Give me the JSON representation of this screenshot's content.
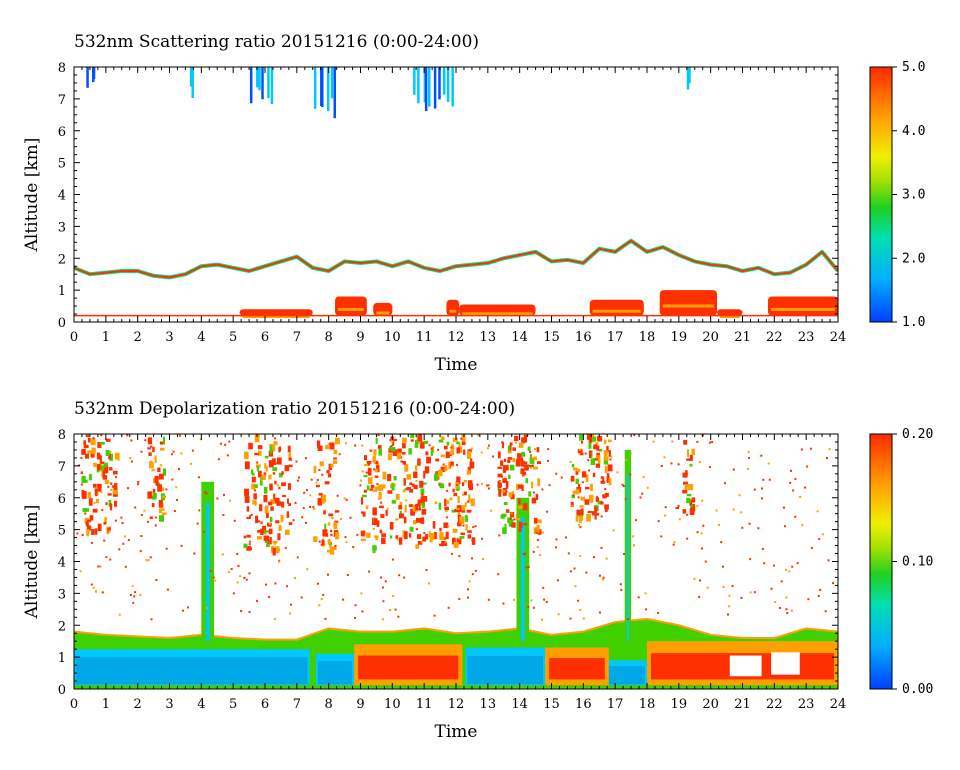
{
  "chart_data": [
    {
      "type": "heatmap",
      "title": "532nm Scattering ratio  20151216 (0:00-24:00)",
      "xlabel": "Time",
      "ylabel": "Altitude [km]",
      "xlim": [
        0,
        24
      ],
      "ylim": [
        0,
        8
      ],
      "x_ticks": [
        "0",
        "1",
        "2",
        "3",
        "4",
        "5",
        "6",
        "7",
        "8",
        "9",
        "10",
        "11",
        "12",
        "13",
        "14",
        "15",
        "16",
        "17",
        "18",
        "19",
        "20",
        "21",
        "22",
        "23",
        "24"
      ],
      "y_ticks": [
        "0",
        "1",
        "2",
        "3",
        "4",
        "5",
        "6",
        "7",
        "8"
      ],
      "colorbar": {
        "min": 1.0,
        "max": 5.0,
        "ticks": [
          "1.0",
          "2.0",
          "3.0",
          "4.0",
          "5.0"
        ]
      },
      "colorscale": [
        "#0050ff",
        "#00c8ff",
        "#00e080",
        "#40d000",
        "#f0f000",
        "#ffa000",
        "#ff3000"
      ],
      "cloud_top_layer_km": [
        [
          0,
          1.7
        ],
        [
          0.5,
          1.5
        ],
        [
          1,
          1.55
        ],
        [
          1.5,
          1.6
        ],
        [
          2,
          1.6
        ],
        [
          2.5,
          1.45
        ],
        [
          3,
          1.4
        ],
        [
          3.5,
          1.5
        ],
        [
          4,
          1.75
        ],
        [
          4.5,
          1.8
        ],
        [
          5,
          1.7
        ],
        [
          5.5,
          1.6
        ],
        [
          6,
          1.75
        ],
        [
          6.5,
          1.9
        ],
        [
          7,
          2.05
        ],
        [
          7.5,
          1.7
        ],
        [
          8,
          1.6
        ],
        [
          8.5,
          1.9
        ],
        [
          9,
          1.85
        ],
        [
          9.5,
          1.9
        ],
        [
          10,
          1.75
        ],
        [
          10.5,
          1.9
        ],
        [
          11,
          1.7
        ],
        [
          11.5,
          1.6
        ],
        [
          12,
          1.75
        ],
        [
          12.5,
          1.8
        ],
        [
          13,
          1.85
        ],
        [
          13.5,
          2.0
        ],
        [
          14,
          2.1
        ],
        [
          14.5,
          2.2
        ],
        [
          15,
          1.9
        ],
        [
          15.5,
          1.95
        ],
        [
          16,
          1.85
        ],
        [
          16.5,
          2.3
        ],
        [
          17,
          2.2
        ],
        [
          17.5,
          2.55
        ],
        [
          18,
          2.2
        ],
        [
          18.5,
          2.35
        ],
        [
          19,
          2.1
        ],
        [
          19.5,
          1.9
        ],
        [
          20,
          1.8
        ],
        [
          20.5,
          1.75
        ],
        [
          21,
          1.6
        ],
        [
          21.5,
          1.7
        ],
        [
          22,
          1.5
        ],
        [
          22.5,
          1.55
        ],
        [
          23,
          1.8
        ],
        [
          23.5,
          2.2
        ],
        [
          24,
          1.6
        ]
      ],
      "high_cloud_km": [
        {
          "start": 0.3,
          "end": 0.7,
          "bottom": 7.2
        },
        {
          "start": 3.6,
          "end": 3.7,
          "bottom": 6.9
        },
        {
          "start": 5.5,
          "end": 6.2,
          "bottom": 6.7
        },
        {
          "start": 7.5,
          "end": 8.2,
          "bottom": 6.3
        },
        {
          "start": 10.6,
          "end": 11.9,
          "bottom": 6.5
        },
        {
          "start": 19.2,
          "end": 19.3,
          "bottom": 7.2
        }
      ],
      "boundary_layer_km": [
        {
          "start": 5.2,
          "end": 7.5,
          "top": 0.4
        },
        {
          "start": 8.2,
          "end": 9.2,
          "top": 0.8
        },
        {
          "start": 9.4,
          "end": 10.0,
          "top": 0.6
        },
        {
          "start": 11.7,
          "end": 12.1,
          "top": 0.7
        },
        {
          "start": 12.1,
          "end": 14.5,
          "top": 0.55
        },
        {
          "start": 16.2,
          "end": 17.9,
          "top": 0.7
        },
        {
          "start": 18.4,
          "end": 20.2,
          "top": 1.0
        },
        {
          "start": 20.2,
          "end": 21.0,
          "top": 0.4
        },
        {
          "start": 21.8,
          "end": 24.0,
          "top": 0.8
        }
      ]
    },
    {
      "type": "heatmap",
      "title": "532nm Depolarization ratio  20151216 (0:00-24:00)",
      "xlabel": "Time",
      "ylabel": "Altitude [km]",
      "xlim": [
        0,
        24
      ],
      "ylim": [
        0,
        8
      ],
      "x_ticks": [
        "0",
        "1",
        "2",
        "3",
        "4",
        "5",
        "6",
        "7",
        "8",
        "9",
        "10",
        "11",
        "12",
        "13",
        "14",
        "15",
        "16",
        "17",
        "18",
        "19",
        "20",
        "21",
        "22",
        "23",
        "24"
      ],
      "y_ticks": [
        "0",
        "1",
        "2",
        "3",
        "4",
        "5",
        "6",
        "7",
        "8"
      ],
      "colorbar": {
        "min": 0.0,
        "max": 0.2,
        "ticks": [
          "0.00",
          "0.10",
          "0.20"
        ]
      },
      "colorscale": [
        "#0050ff",
        "#00c8ff",
        "#00e080",
        "#40d000",
        "#f0f000",
        "#ffa000",
        "#ff3000"
      ],
      "aerosol_top_km": [
        [
          0,
          1.8
        ],
        [
          1,
          1.7
        ],
        [
          2,
          1.65
        ],
        [
          3,
          1.6
        ],
        [
          4,
          1.7
        ],
        [
          5,
          1.6
        ],
        [
          6,
          1.55
        ],
        [
          7,
          1.55
        ],
        [
          8,
          1.9
        ],
        [
          9,
          1.8
        ],
        [
          10,
          1.8
        ],
        [
          11,
          1.9
        ],
        [
          12,
          1.75
        ],
        [
          13,
          1.8
        ],
        [
          14,
          1.9
        ],
        [
          15,
          1.7
        ],
        [
          16,
          1.8
        ],
        [
          17,
          2.1
        ],
        [
          18,
          2.2
        ],
        [
          19,
          2.0
        ],
        [
          20,
          1.7
        ],
        [
          21,
          1.6
        ],
        [
          22,
          1.6
        ],
        [
          23,
          1.9
        ],
        [
          24,
          1.8
        ]
      ],
      "low_depol_layer_km": [
        {
          "start": 0.0,
          "end": 7.4,
          "top": 1.25
        },
        {
          "start": 7.6,
          "end": 8.8,
          "top": 1.1
        },
        {
          "start": 12.3,
          "end": 14.8,
          "top": 1.3
        },
        {
          "start": 15.5,
          "end": 18.0,
          "top": 0.9
        }
      ],
      "high_depol_layer_km": [
        {
          "start": 8.8,
          "end": 12.2,
          "top": 1.4
        },
        {
          "start": 14.8,
          "end": 16.8,
          "top": 1.3
        },
        {
          "start": 18.0,
          "end": 24.0,
          "top": 1.5
        }
      ],
      "vertical_plumes_km": [
        {
          "start": 4.0,
          "end": 4.4,
          "top": 6.5
        },
        {
          "start": 13.9,
          "end": 14.3,
          "top": 6.0
        },
        {
          "start": 17.3,
          "end": 17.5,
          "top": 7.5
        }
      ],
      "high_cloud_km": [
        {
          "start": 0.2,
          "end": 1.3,
          "bottom": 5.0
        },
        {
          "start": 2.3,
          "end": 2.8,
          "bottom": 5.4
        },
        {
          "start": 5.3,
          "end": 6.8,
          "bottom": 4.4
        },
        {
          "start": 7.5,
          "end": 8.2,
          "bottom": 4.3
        },
        {
          "start": 9.0,
          "end": 12.5,
          "bottom": 4.5
        },
        {
          "start": 13.3,
          "end": 14.6,
          "bottom": 5.0
        },
        {
          "start": 15.6,
          "end": 16.8,
          "bottom": 5.3
        },
        {
          "start": 19.1,
          "end": 19.4,
          "bottom": 5.5
        }
      ]
    }
  ]
}
